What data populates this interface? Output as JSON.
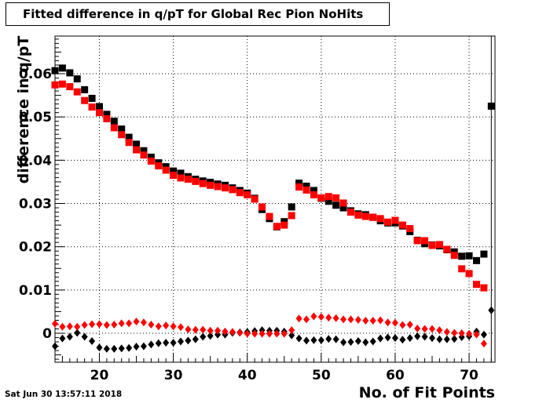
{
  "chart_data": {
    "type": "scatter",
    "title": "Fitted difference in q/pT for Global Rec Pion NoHits",
    "xlabel": "No. of Fit Points",
    "ylabel": "difference in q/pT",
    "xlim": [
      14,
      73.5
    ],
    "ylim": [
      -0.0067,
      0.0687
    ],
    "x_ticks": [
      20,
      30,
      40,
      50,
      60,
      70
    ],
    "y_ticks": [
      0,
      0.01,
      0.02,
      0.03,
      0.04,
      0.05,
      0.06
    ],
    "y_tick_labels": [
      "0",
      "0.01",
      "0.02",
      "0.03",
      "0.04",
      "0.05",
      "0.06"
    ],
    "grid": true,
    "timestamp": "Sat Jun 30 13:57:11 2018",
    "series": [
      {
        "marker": "square",
        "color": "#000000",
        "points": [
          [
            14,
            0.0607
          ],
          [
            15,
            0.0613
          ],
          [
            16,
            0.0602
          ],
          [
            17,
            0.0588
          ],
          [
            18,
            0.0563
          ],
          [
            19,
            0.0543
          ],
          [
            20,
            0.0524
          ],
          [
            21,
            0.0506
          ],
          [
            22,
            0.049
          ],
          [
            23,
            0.0472
          ],
          [
            24,
            0.0453
          ],
          [
            25,
            0.0437
          ],
          [
            26,
            0.0422
          ],
          [
            27,
            0.0407
          ],
          [
            28,
            0.0394
          ],
          [
            29,
            0.0385
          ],
          [
            30,
            0.0375
          ],
          [
            31,
            0.037
          ],
          [
            32,
            0.0362
          ],
          [
            33,
            0.0356
          ],
          [
            34,
            0.0352
          ],
          [
            35,
            0.0349
          ],
          [
            36,
            0.0345
          ],
          [
            37,
            0.0342
          ],
          [
            38,
            0.0336
          ],
          [
            39,
            0.033
          ],
          [
            40,
            0.0324
          ],
          [
            41,
            0.0312
          ],
          [
            42,
            0.0286
          ],
          [
            43,
            0.0265
          ],
          [
            44,
            0.0246
          ],
          [
            45,
            0.0258
          ],
          [
            46,
            0.0292
          ],
          [
            47,
            0.0347
          ],
          [
            48,
            0.034
          ],
          [
            49,
            0.033
          ],
          [
            50,
            0.0312
          ],
          [
            51,
            0.0305
          ],
          [
            52,
            0.0296
          ],
          [
            53,
            0.029
          ],
          [
            54,
            0.0283
          ],
          [
            55,
            0.0276
          ],
          [
            56,
            0.0274
          ],
          [
            57,
            0.0268
          ],
          [
            58,
            0.026
          ],
          [
            59,
            0.0255
          ],
          [
            60,
            0.0255
          ],
          [
            61,
            0.0248
          ],
          [
            62,
            0.0235
          ],
          [
            63,
            0.0215
          ],
          [
            64,
            0.0207
          ],
          [
            65,
            0.0204
          ],
          [
            66,
            0.0202
          ],
          [
            67,
            0.0193
          ],
          [
            68,
            0.0188
          ],
          [
            69,
            0.0178
          ],
          [
            70,
            0.0179
          ],
          [
            71,
            0.0168
          ],
          [
            72,
            0.0183
          ],
          [
            73,
            0.0525
          ]
        ]
      },
      {
        "marker": "square",
        "color": "#ff0000",
        "points": [
          [
            14,
            0.0574
          ],
          [
            15,
            0.0576
          ],
          [
            16,
            0.057
          ],
          [
            17,
            0.0558
          ],
          [
            18,
            0.0538
          ],
          [
            19,
            0.0523
          ],
          [
            20,
            0.051
          ],
          [
            21,
            0.0496
          ],
          [
            22,
            0.0475
          ],
          [
            23,
            0.0459
          ],
          [
            24,
            0.0441
          ],
          [
            25,
            0.0424
          ],
          [
            26,
            0.0412
          ],
          [
            27,
            0.0398
          ],
          [
            28,
            0.0387
          ],
          [
            29,
            0.0377
          ],
          [
            30,
            0.0365
          ],
          [
            31,
            0.0359
          ],
          [
            32,
            0.0356
          ],
          [
            33,
            0.0351
          ],
          [
            34,
            0.0346
          ],
          [
            35,
            0.0342
          ],
          [
            36,
            0.0339
          ],
          [
            37,
            0.0336
          ],
          [
            38,
            0.0332
          ],
          [
            39,
            0.0325
          ],
          [
            40,
            0.032
          ],
          [
            41,
            0.031
          ],
          [
            42,
            0.0292
          ],
          [
            43,
            0.027
          ],
          [
            44,
            0.0247
          ],
          [
            45,
            0.025
          ],
          [
            46,
            0.0272
          ],
          [
            47,
            0.0338
          ],
          [
            48,
            0.0331
          ],
          [
            49,
            0.032
          ],
          [
            50,
            0.0313
          ],
          [
            51,
            0.0316
          ],
          [
            52,
            0.0313
          ],
          [
            53,
            0.0301
          ],
          [
            54,
            0.028
          ],
          [
            55,
            0.0273
          ],
          [
            56,
            0.027
          ],
          [
            57,
            0.0268
          ],
          [
            58,
            0.0265
          ],
          [
            59,
            0.0257
          ],
          [
            60,
            0.0261
          ],
          [
            61,
            0.025
          ],
          [
            62,
            0.0242
          ],
          [
            63,
            0.0214
          ],
          [
            64,
            0.0214
          ],
          [
            65,
            0.0203
          ],
          [
            66,
            0.0205
          ],
          [
            67,
            0.0194
          ],
          [
            68,
            0.018
          ],
          [
            69,
            0.0149
          ],
          [
            70,
            0.0138
          ],
          [
            71,
            0.0113
          ],
          [
            72,
            0.0105
          ]
        ]
      },
      {
        "marker": "diamond",
        "color": "#000000",
        "points": [
          [
            14,
            -0.003
          ],
          [
            15,
            -0.0012
          ],
          [
            16,
            -0.0008
          ],
          [
            17,
            0.0001
          ],
          [
            18,
            -0.0008
          ],
          [
            19,
            -0.0018
          ],
          [
            20,
            -0.0033
          ],
          [
            21,
            -0.0036
          ],
          [
            22,
            -0.0036
          ],
          [
            23,
            -0.0035
          ],
          [
            24,
            -0.0034
          ],
          [
            25,
            -0.0031
          ],
          [
            26,
            -0.003
          ],
          [
            27,
            -0.0026
          ],
          [
            28,
            -0.0023
          ],
          [
            29,
            -0.0022
          ],
          [
            30,
            -0.0022
          ],
          [
            31,
            -0.0019
          ],
          [
            32,
            -0.0017
          ],
          [
            33,
            -0.0014
          ],
          [
            34,
            -0.0008
          ],
          [
            35,
            -0.0006
          ],
          [
            36,
            -0.0003
          ],
          [
            37,
            -0.0003
          ],
          [
            38,
            0.0001
          ],
          [
            39,
            0.0002
          ],
          [
            40,
            0.0003
          ],
          [
            41,
            0.0005
          ],
          [
            42,
            0.0007
          ],
          [
            43,
            0.0006
          ],
          [
            44,
            0.0006
          ],
          [
            45,
            0.0004
          ],
          [
            46,
            -0.0005
          ],
          [
            47,
            -0.0012
          ],
          [
            48,
            -0.0017
          ],
          [
            49,
            -0.0016
          ],
          [
            50,
            -0.0016
          ],
          [
            51,
            -0.0013
          ],
          [
            52,
            -0.0014
          ],
          [
            53,
            -0.0021
          ],
          [
            54,
            -0.002
          ],
          [
            55,
            -0.0018
          ],
          [
            56,
            -0.0021
          ],
          [
            57,
            -0.0019
          ],
          [
            58,
            -0.0012
          ],
          [
            59,
            -0.001
          ],
          [
            60,
            -0.0011
          ],
          [
            61,
            -0.0015
          ],
          [
            62,
            -0.0011
          ],
          [
            63,
            -0.0007
          ],
          [
            64,
            -0.0008
          ],
          [
            65,
            -0.0011
          ],
          [
            66,
            -0.0014
          ],
          [
            67,
            -0.0014
          ],
          [
            68,
            -0.0013
          ],
          [
            69,
            -0.0009
          ],
          [
            70,
            -0.0007
          ],
          [
            71,
            0.0004
          ],
          [
            72,
            -0.0003
          ],
          [
            73,
            0.0053
          ]
        ]
      },
      {
        "marker": "diamond",
        "color": "#ff0000",
        "points": [
          [
            14,
            0.0022
          ],
          [
            15,
            0.0015
          ],
          [
            16,
            0.0016
          ],
          [
            17,
            0.0015
          ],
          [
            18,
            0.0019
          ],
          [
            19,
            0.0021
          ],
          [
            20,
            0.0021
          ],
          [
            21,
            0.0019
          ],
          [
            22,
            0.002
          ],
          [
            23,
            0.0023
          ],
          [
            24,
            0.0023
          ],
          [
            25,
            0.0027
          ],
          [
            26,
            0.0025
          ],
          [
            27,
            0.002
          ],
          [
            28,
            0.0016
          ],
          [
            29,
            0.0018
          ],
          [
            30,
            0.0016
          ],
          [
            31,
            0.0014
          ],
          [
            32,
            0.0009
          ],
          [
            33,
            0.0008
          ],
          [
            34,
            0.0008
          ],
          [
            35,
            0.0006
          ],
          [
            36,
            0.0006
          ],
          [
            37,
            0.0004
          ],
          [
            38,
            0.0003
          ],
          [
            39,
            0.0001
          ],
          [
            40,
            -0.0001
          ],
          [
            41,
            -0.0001
          ],
          [
            42,
            -0.0001
          ],
          [
            43,
            -0.0001
          ],
          [
            44,
            -0.0001
          ],
          [
            45,
            -0.0001
          ],
          [
            46,
            0.0007
          ],
          [
            47,
            0.0034
          ],
          [
            48,
            0.0032
          ],
          [
            49,
            0.0039
          ],
          [
            50,
            0.0038
          ],
          [
            51,
            0.0036
          ],
          [
            52,
            0.0035
          ],
          [
            53,
            0.0032
          ],
          [
            54,
            0.0032
          ],
          [
            55,
            0.0031
          ],
          [
            56,
            0.0029
          ],
          [
            57,
            0.0029
          ],
          [
            58,
            0.003
          ],
          [
            59,
            0.0025
          ],
          [
            60,
            0.0024
          ],
          [
            61,
            0.0019
          ],
          [
            62,
            0.002
          ],
          [
            63,
            0.0011
          ],
          [
            64,
            0.001
          ],
          [
            65,
            0.001
          ],
          [
            66,
            0.0007
          ],
          [
            67,
            0.0003
          ],
          [
            68,
            0.0001
          ],
          [
            69,
            0.0
          ],
          [
            70,
            -0.0001
          ],
          [
            71,
            -0.0003
          ],
          [
            72,
            -0.0024
          ]
        ]
      }
    ]
  }
}
